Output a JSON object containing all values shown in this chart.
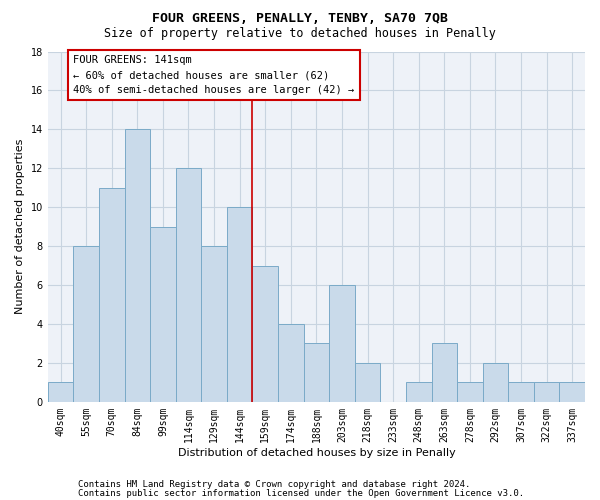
{
  "title": "FOUR GREENS, PENALLY, TENBY, SA70 7QB",
  "subtitle": "Size of property relative to detached houses in Penally",
  "xlabel": "Distribution of detached houses by size in Penally",
  "ylabel": "Number of detached properties",
  "categories": [
    "40sqm",
    "55sqm",
    "70sqm",
    "84sqm",
    "99sqm",
    "114sqm",
    "129sqm",
    "144sqm",
    "159sqm",
    "174sqm",
    "188sqm",
    "203sqm",
    "218sqm",
    "233sqm",
    "248sqm",
    "263sqm",
    "278sqm",
    "292sqm",
    "307sqm",
    "322sqm",
    "337sqm"
  ],
  "values": [
    1,
    8,
    11,
    14,
    9,
    12,
    8,
    10,
    7,
    4,
    3,
    6,
    2,
    0,
    1,
    3,
    1,
    2,
    1,
    1,
    1
  ],
  "bar_color": "#c9daea",
  "bar_edge_color": "#7aaac8",
  "grid_color": "#c8d4e0",
  "background_color": "#eef2f8",
  "annotation_line1": "FOUR GREENS: 141sqm",
  "annotation_line2": "← 60% of detached houses are smaller (62)",
  "annotation_line3": "40% of semi-detached houses are larger (42) →",
  "annotation_box_color": "#ffffff",
  "annotation_box_edge": "#cc0000",
  "vline_x_index": 7.5,
  "vline_color": "#cc0000",
  "ylim": [
    0,
    18
  ],
  "yticks": [
    0,
    2,
    4,
    6,
    8,
    10,
    12,
    14,
    16,
    18
  ],
  "footer_line1": "Contains HM Land Registry data © Crown copyright and database right 2024.",
  "footer_line2": "Contains public sector information licensed under the Open Government Licence v3.0.",
  "title_fontsize": 9.5,
  "subtitle_fontsize": 8.5,
  "xlabel_fontsize": 8,
  "ylabel_fontsize": 8,
  "tick_fontsize": 7,
  "annotation_fontsize": 7.5,
  "footer_fontsize": 6.5
}
